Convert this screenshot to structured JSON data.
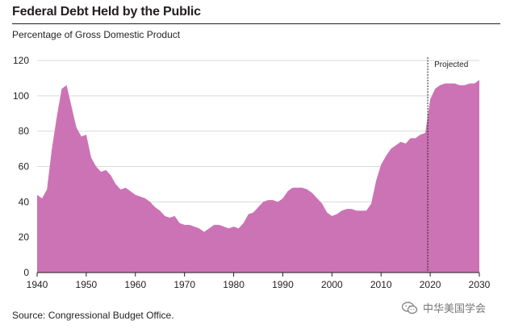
{
  "source": "Source: Congressional Budget Office.",
  "watermark": "中华美国学会",
  "chart_data": {
    "type": "area",
    "title": "Federal Debt Held by the Public",
    "subtitle": "Percentage of Gross Domestic Product",
    "xlabel": "",
    "ylabel": "",
    "xlim": [
      1940,
      2030
    ],
    "ylim": [
      0,
      120
    ],
    "x_ticks": [
      1940,
      1950,
      1960,
      1970,
      1980,
      1990,
      2000,
      2010,
      2020,
      2030
    ],
    "y_ticks": [
      0,
      20,
      40,
      60,
      80,
      100,
      120
    ],
    "projection_start": 2019.5,
    "annotation": "Projected",
    "fill_color": "#cc73b5",
    "series": [
      {
        "name": "Debt held by the public",
        "x": [
          1940,
          1941,
          1942,
          1943,
          1944,
          1945,
          1946,
          1947,
          1948,
          1949,
          1950,
          1951,
          1952,
          1953,
          1954,
          1955,
          1956,
          1957,
          1958,
          1959,
          1960,
          1961,
          1962,
          1963,
          1964,
          1965,
          1966,
          1967,
          1968,
          1969,
          1970,
          1971,
          1972,
          1973,
          1974,
          1975,
          1976,
          1977,
          1978,
          1979,
          1980,
          1981,
          1982,
          1983,
          1984,
          1985,
          1986,
          1987,
          1988,
          1989,
          1990,
          1991,
          1992,
          1993,
          1994,
          1995,
          1996,
          1997,
          1998,
          1999,
          2000,
          2001,
          2002,
          2003,
          2004,
          2005,
          2006,
          2007,
          2008,
          2009,
          2010,
          2011,
          2012,
          2013,
          2014,
          2015,
          2016,
          2017,
          2018,
          2019,
          2020,
          2021,
          2022,
          2023,
          2024,
          2025,
          2026,
          2027,
          2028,
          2029,
          2030
        ],
        "values": [
          44,
          42,
          47,
          70,
          88,
          104,
          106,
          94,
          82,
          77,
          78,
          65,
          60,
          57,
          58,
          55,
          50,
          47,
          48,
          46,
          44,
          43,
          42,
          40,
          37,
          35,
          32,
          31,
          32,
          28,
          27,
          27,
          26,
          25,
          23,
          25,
          27,
          27,
          26,
          25,
          26,
          25,
          28,
          33,
          34,
          37,
          40,
          41,
          41,
          40,
          42,
          46,
          48,
          48,
          48,
          47,
          45,
          42,
          39,
          34,
          32,
          33,
          35,
          36,
          36,
          35,
          35,
          35,
          39,
          52,
          61,
          66,
          70,
          72,
          74,
          73,
          76,
          76,
          78,
          79,
          98,
          104,
          106,
          107,
          107,
          107,
          106,
          106,
          107,
          107,
          109
        ]
      }
    ]
  }
}
